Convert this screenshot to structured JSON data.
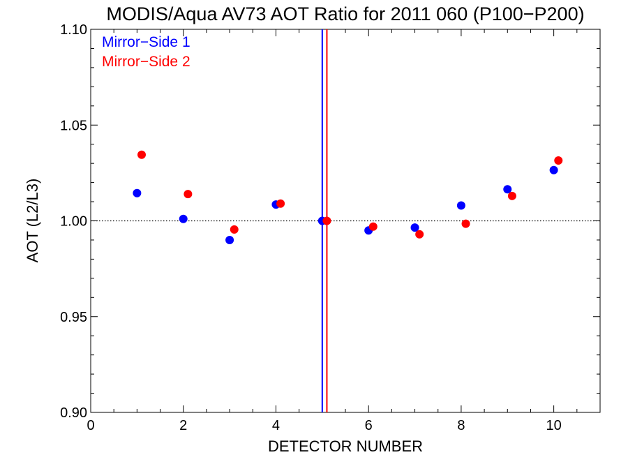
{
  "chart_data": {
    "type": "scatter",
    "title": "MODIS/Aqua AV73 AOT Ratio for 2011 060 (P100−P200)",
    "xlabel": "DETECTOR NUMBER",
    "ylabel": "AOT (L2/L3)",
    "xlim": [
      0,
      11
    ],
    "ylim": [
      0.9,
      1.1
    ],
    "x_ticks": [
      0,
      2,
      4,
      6,
      8,
      10
    ],
    "x_tick_labels": [
      "0",
      "2",
      "4",
      "6",
      "8",
      "10"
    ],
    "y_ticks": [
      0.9,
      0.95,
      1.0,
      1.05,
      1.1
    ],
    "y_tick_labels": [
      "0.90",
      "0.95",
      "1.00",
      "1.05",
      "1.10"
    ],
    "reference_line_y": 1.0,
    "legend_placement": "top-left",
    "series": [
      {
        "name": "Mirror−Side 1",
        "color": "#0000ff",
        "x": [
          1,
          2,
          3,
          4,
          5,
          6,
          7,
          8,
          9,
          10
        ],
        "y": [
          1.0145,
          1.001,
          0.99,
          1.0085,
          1.0,
          0.995,
          0.9965,
          1.008,
          1.0165,
          1.0265
        ],
        "vertical_line_x": 5.0
      },
      {
        "name": "Mirror−Side 2",
        "color": "#ff0000",
        "x": [
          1.1,
          2.1,
          3.1,
          4.1,
          5.1,
          6.1,
          7.1,
          8.1,
          9.1,
          10.1
        ],
        "y": [
          1.0345,
          1.014,
          0.9955,
          1.009,
          1.0,
          0.997,
          0.993,
          0.9985,
          1.013,
          1.0315
        ],
        "vertical_line_x": 5.1
      }
    ]
  }
}
